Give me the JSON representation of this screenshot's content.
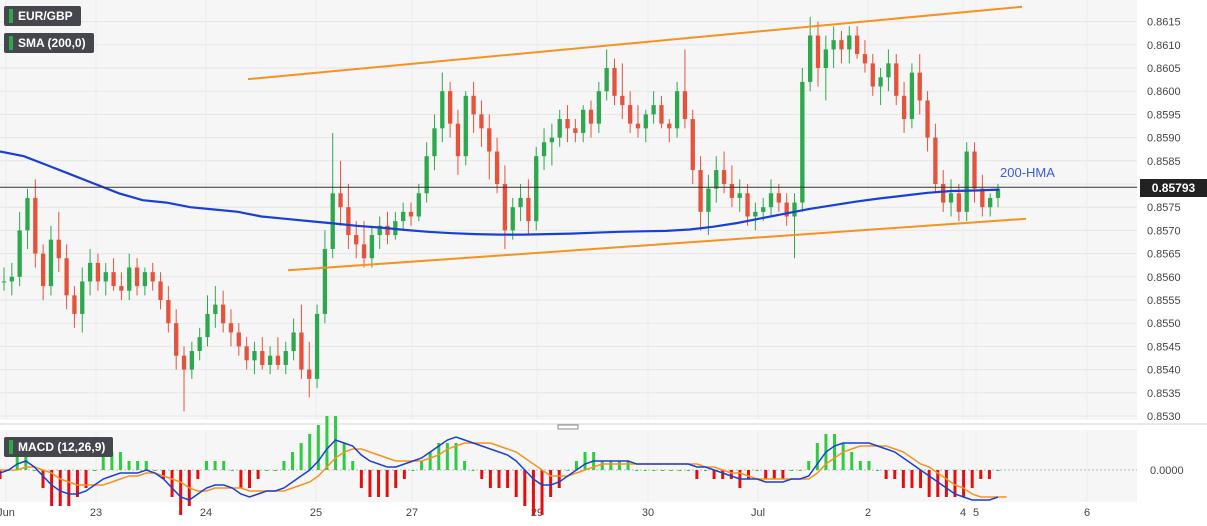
{
  "header": {
    "symbol": "EUR/GBP",
    "indicator": "SMA (200,0)",
    "macd_label": "MACD (12,26,9)",
    "current_price": "0.85793",
    "hma_annotation": "200-HMA"
  },
  "colors": {
    "bull": "#2ea84e",
    "bear": "#e5533d",
    "trendline": "#f5931e",
    "ma": "#1a3fd6",
    "macd_line": "#1a3fd6",
    "signal_line": "#f5931e",
    "hist_pos": "#2ecc40",
    "hist_neg": "#e01010",
    "grid": "#e6e6e6",
    "panel_bg": "#f6f6f7"
  },
  "chart_data": [
    {
      "type": "candlestick",
      "title": "EUR/GBP",
      "ylim": [
        0.8528,
        0.8619
      ],
      "y_ticks": [
        "0.8615",
        "0.8610",
        "0.8605",
        "0.8600",
        "0.8595",
        "0.8590",
        "0.8585",
        "0.8580",
        "0.8575",
        "0.8570",
        "0.8565",
        "0.8560",
        "0.8555",
        "0.8550",
        "0.8545",
        "0.8540",
        "0.8535",
        "0.8530"
      ],
      "x_ticks": [
        "Jun",
        "23",
        "24",
        "25",
        "27",
        "29",
        "30",
        "Jul",
        "2",
        "4",
        "5",
        "6"
      ],
      "ohlc": [
        [
          0.8559,
          0.8562,
          0.8557,
          0.8559
        ],
        [
          0.8559,
          0.8563,
          0.8556,
          0.856
        ],
        [
          0.856,
          0.8574,
          0.8558,
          0.857
        ],
        [
          0.857,
          0.8579,
          0.8566,
          0.8577
        ],
        [
          0.8577,
          0.8581,
          0.8562,
          0.8565
        ],
        [
          0.8565,
          0.8567,
          0.8555,
          0.8558
        ],
        [
          0.8558,
          0.8571,
          0.8556,
          0.8568
        ],
        [
          0.8568,
          0.8574,
          0.8561,
          0.8564
        ],
        [
          0.8564,
          0.8567,
          0.8553,
          0.8556
        ],
        [
          0.8556,
          0.8558,
          0.8549,
          0.8552
        ],
        [
          0.8552,
          0.8562,
          0.8548,
          0.8559
        ],
        [
          0.8559,
          0.8566,
          0.8556,
          0.8563
        ],
        [
          0.8563,
          0.8565,
          0.8557,
          0.8559
        ],
        [
          0.8559,
          0.8563,
          0.8556,
          0.8561
        ],
        [
          0.8561,
          0.8564,
          0.8557,
          0.8558
        ],
        [
          0.8558,
          0.8561,
          0.8555,
          0.8557
        ],
        [
          0.8557,
          0.8565,
          0.8555,
          0.8562
        ],
        [
          0.8562,
          0.8564,
          0.8556,
          0.8558
        ],
        [
          0.8558,
          0.8562,
          0.8556,
          0.8561
        ],
        [
          0.8561,
          0.8563,
          0.8557,
          0.8559
        ],
        [
          0.8559,
          0.8561,
          0.8553,
          0.8555
        ],
        [
          0.8555,
          0.8558,
          0.8548,
          0.855
        ],
        [
          0.855,
          0.8553,
          0.854,
          0.8543
        ],
        [
          0.8543,
          0.8545,
          0.8531,
          0.854
        ],
        [
          0.854,
          0.8546,
          0.8538,
          0.8544
        ],
        [
          0.8544,
          0.8549,
          0.8542,
          0.8547
        ],
        [
          0.8547,
          0.8556,
          0.8545,
          0.8552
        ],
        [
          0.8552,
          0.8558,
          0.8549,
          0.8554
        ],
        [
          0.8554,
          0.8557,
          0.8548,
          0.855
        ],
        [
          0.855,
          0.8553,
          0.8545,
          0.8548
        ],
        [
          0.8548,
          0.855,
          0.8543,
          0.8545
        ],
        [
          0.8545,
          0.8547,
          0.854,
          0.8542
        ],
        [
          0.8542,
          0.8546,
          0.8539,
          0.8544
        ],
        [
          0.8544,
          0.8547,
          0.854,
          0.8541
        ],
        [
          0.8541,
          0.8545,
          0.8539,
          0.8543
        ],
        [
          0.8543,
          0.8547,
          0.854,
          0.8541
        ],
        [
          0.8541,
          0.8546,
          0.8539,
          0.8544
        ],
        [
          0.8544,
          0.8551,
          0.8542,
          0.8548
        ],
        [
          0.8548,
          0.8554,
          0.8538,
          0.854
        ],
        [
          0.854,
          0.8546,
          0.8534,
          0.8538
        ],
        [
          0.8538,
          0.8554,
          0.8536,
          0.8552
        ],
        [
          0.8552,
          0.857,
          0.855,
          0.8566
        ],
        [
          0.8566,
          0.8591,
          0.8564,
          0.8578
        ],
        [
          0.8578,
          0.8585,
          0.8571,
          0.8575
        ],
        [
          0.8575,
          0.858,
          0.8566,
          0.8569
        ],
        [
          0.8569,
          0.8572,
          0.8564,
          0.8567
        ],
        [
          0.8567,
          0.8572,
          0.8562,
          0.8564
        ],
        [
          0.8564,
          0.8571,
          0.8562,
          0.8569
        ],
        [
          0.8569,
          0.8573,
          0.8566,
          0.8571
        ],
        [
          0.8571,
          0.8574,
          0.8567,
          0.8569
        ],
        [
          0.8569,
          0.8574,
          0.8568,
          0.8572
        ],
        [
          0.8572,
          0.8576,
          0.857,
          0.8574
        ],
        [
          0.8574,
          0.8576,
          0.8571,
          0.8573
        ],
        [
          0.8573,
          0.858,
          0.8572,
          0.8578
        ],
        [
          0.8578,
          0.8589,
          0.8576,
          0.8586
        ],
        [
          0.8586,
          0.8595,
          0.8583,
          0.8592
        ],
        [
          0.8592,
          0.8604,
          0.8589,
          0.86
        ],
        [
          0.86,
          0.8602,
          0.859,
          0.8593
        ],
        [
          0.8593,
          0.8596,
          0.8582,
          0.8586
        ],
        [
          0.8586,
          0.86,
          0.8584,
          0.8599
        ],
        [
          0.8599,
          0.8602,
          0.8591,
          0.8595
        ],
        [
          0.8595,
          0.8598,
          0.8588,
          0.8592
        ],
        [
          0.8592,
          0.8595,
          0.8581,
          0.8587
        ],
        [
          0.8587,
          0.859,
          0.8578,
          0.858
        ],
        [
          0.858,
          0.8584,
          0.8566,
          0.857
        ],
        [
          0.857,
          0.8577,
          0.8568,
          0.8575
        ],
        [
          0.8575,
          0.858,
          0.8572,
          0.8577
        ],
        [
          0.8577,
          0.8581,
          0.8569,
          0.8572
        ],
        [
          0.8572,
          0.8588,
          0.857,
          0.8586
        ],
        [
          0.8586,
          0.8592,
          0.8583,
          0.8589
        ],
        [
          0.8589,
          0.8593,
          0.8584,
          0.859
        ],
        [
          0.859,
          0.8596,
          0.8588,
          0.8594
        ],
        [
          0.8594,
          0.8597,
          0.8589,
          0.8592
        ],
        [
          0.8592,
          0.8594,
          0.8589,
          0.8591
        ],
        [
          0.8591,
          0.8597,
          0.8589,
          0.8596
        ],
        [
          0.8596,
          0.8598,
          0.859,
          0.8593
        ],
        [
          0.8593,
          0.8602,
          0.8591,
          0.86
        ],
        [
          0.86,
          0.8609,
          0.8598,
          0.8605
        ],
        [
          0.8605,
          0.8607,
          0.8597,
          0.8599
        ],
        [
          0.8599,
          0.8606,
          0.8594,
          0.8597
        ],
        [
          0.8597,
          0.86,
          0.8591,
          0.8593
        ],
        [
          0.8593,
          0.8597,
          0.859,
          0.8592
        ],
        [
          0.8592,
          0.8596,
          0.8589,
          0.8595
        ],
        [
          0.8595,
          0.86,
          0.8593,
          0.8597
        ],
        [
          0.8597,
          0.8599,
          0.8592,
          0.8593
        ],
        [
          0.8593,
          0.8594,
          0.8589,
          0.8592
        ],
        [
          0.8592,
          0.8602,
          0.859,
          0.86
        ],
        [
          0.86,
          0.8609,
          0.8592,
          0.8594
        ],
        [
          0.8594,
          0.8596,
          0.858,
          0.8583
        ],
        [
          0.8583,
          0.8586,
          0.857,
          0.8574
        ],
        [
          0.8574,
          0.8582,
          0.8569,
          0.8579
        ],
        [
          0.8579,
          0.8586,
          0.8576,
          0.8583
        ],
        [
          0.8583,
          0.8587,
          0.8578,
          0.858
        ],
        [
          0.858,
          0.8584,
          0.8575,
          0.8577
        ],
        [
          0.8577,
          0.8581,
          0.8574,
          0.8578
        ],
        [
          0.8578,
          0.858,
          0.8571,
          0.8573
        ],
        [
          0.8573,
          0.8576,
          0.857,
          0.8574
        ],
        [
          0.8574,
          0.8577,
          0.8572,
          0.8575
        ],
        [
          0.8575,
          0.8581,
          0.8573,
          0.8578
        ],
        [
          0.8578,
          0.858,
          0.8574,
          0.8576
        ],
        [
          0.8576,
          0.8578,
          0.8571,
          0.8573
        ],
        [
          0.8573,
          0.8578,
          0.8564,
          0.8576
        ],
        [
          0.8576,
          0.8605,
          0.8574,
          0.8602
        ],
        [
          0.8602,
          0.8616,
          0.86,
          0.8612
        ],
        [
          0.8612,
          0.8615,
          0.8601,
          0.8605
        ],
        [
          0.8605,
          0.8612,
          0.8598,
          0.8609
        ],
        [
          0.8609,
          0.8614,
          0.8605,
          0.8611
        ],
        [
          0.8611,
          0.8613,
          0.8606,
          0.8609
        ],
        [
          0.8609,
          0.8614,
          0.8606,
          0.8612
        ],
        [
          0.8612,
          0.8614,
          0.8607,
          0.8608
        ],
        [
          0.8608,
          0.8611,
          0.8604,
          0.8606
        ],
        [
          0.8606,
          0.8608,
          0.8599,
          0.8601
        ],
        [
          0.8601,
          0.8605,
          0.8597,
          0.8603
        ],
        [
          0.8603,
          0.8609,
          0.86,
          0.8606
        ],
        [
          0.8606,
          0.8608,
          0.8597,
          0.8599
        ],
        [
          0.8599,
          0.8602,
          0.8591,
          0.8594
        ],
        [
          0.8594,
          0.8606,
          0.8592,
          0.8604
        ],
        [
          0.8604,
          0.8608,
          0.8595,
          0.8598
        ],
        [
          0.8598,
          0.86,
          0.8587,
          0.859
        ],
        [
          0.859,
          0.8593,
          0.8578,
          0.858
        ],
        [
          0.858,
          0.8583,
          0.8574,
          0.8576
        ],
        [
          0.8576,
          0.8581,
          0.8573,
          0.8578
        ],
        [
          0.8578,
          0.858,
          0.8572,
          0.8574
        ],
        [
          0.8574,
          0.8589,
          0.8572,
          0.8587
        ],
        [
          0.8587,
          0.8589,
          0.8576,
          0.8579
        ],
        [
          0.8579,
          0.8582,
          0.8573,
          0.8575
        ],
        [
          0.8575,
          0.8578,
          0.8573,
          0.8577
        ],
        [
          0.8577,
          0.858,
          0.8575,
          0.8579
        ]
      ],
      "trendlines": [
        {
          "name": "upper",
          "x": [
            0.0,
            1.0
          ],
          "y": [
            0.86026,
            0.86182
          ]
        },
        {
          "name": "lower",
          "x": [
            0.0,
            1.0
          ],
          "y": [
            0.85614,
            0.85725
          ]
        }
      ],
      "moving_average": {
        "name": "200-HMA",
        "values": [
          0.8587,
          0.8586,
          0.8584,
          0.8582,
          0.858,
          0.8578,
          0.85765,
          0.8576,
          0.8575,
          0.85745,
          0.8574,
          0.8573,
          0.85725,
          0.8572,
          0.85715,
          0.8571,
          0.85706,
          0.85701,
          0.85697,
          0.85694,
          0.85692,
          0.85691,
          0.85691,
          0.85692,
          0.85693,
          0.85695,
          0.85697,
          0.85698,
          0.85699,
          0.85702,
          0.85708,
          0.85716,
          0.85726,
          0.85736,
          0.85746,
          0.85754,
          0.85762,
          0.85769,
          0.85775,
          0.85781,
          0.85785,
          0.85786,
          0.85788
        ]
      }
    },
    {
      "type": "macd",
      "title": "MACD (12,26,9)",
      "y_ticks": [
        "0.0000"
      ],
      "ylim": [
        -0.0012,
        0.0013
      ],
      "macd": [
        -0.0001,
        0.0,
        0.0002,
        0.0003,
        0.0001,
        -0.0002,
        -0.0005,
        -0.0007,
        -0.0008,
        -0.0008,
        -0.0007,
        -0.0005,
        -0.0003,
        -0.0002,
        -0.0001,
        -0.0001,
        -0.0001,
        0.0,
        -0.0001,
        -0.0003,
        -0.0006,
        -0.0009,
        -0.001,
        -0.0008,
        -0.0006,
        -0.0005,
        -0.0005,
        -0.0006,
        -0.0008,
        -0.0009,
        -0.0008,
        -0.0007,
        -0.0007,
        -0.0006,
        -0.0004,
        -0.0002,
        0.0,
        0.0003,
        0.0007,
        0.001,
        0.0009,
        0.0008,
        0.0005,
        0.0003,
        0.0002,
        0.0001,
        0.0001,
        0.0002,
        0.0003,
        0.0004,
        0.0006,
        0.0008,
        0.001,
        0.0011,
        0.001,
        0.0009,
        0.0008,
        0.0007,
        0.0006,
        0.0005,
        0.0003,
        0.0,
        -0.0003,
        -0.0005,
        -0.0005,
        -0.0004,
        -0.0002,
        0.0,
        0.0002,
        0.0003,
        0.0003,
        0.0003,
        0.0003,
        0.0003,
        0.0002,
        0.0002,
        0.0002,
        0.0002,
        0.0002,
        0.0002,
        0.0002,
        0.0001,
        0.0001,
        0.0,
        -0.0001,
        -0.0002,
        -0.0003,
        -0.0003,
        -0.0003,
        -0.0004,
        -0.0004,
        -0.0004,
        -0.0003,
        -0.0003,
        -0.0002,
        0.0002,
        0.0006,
        0.0008,
        0.0009,
        0.0009,
        0.0009,
        0.0009,
        0.0008,
        0.0007,
        0.0006,
        0.0004,
        0.0002,
        0.0,
        -0.0002,
        -0.0004,
        -0.0006,
        -0.0008,
        -0.0009,
        -0.001,
        -0.001,
        -0.001,
        -0.0009
      ],
      "signal": [
        0.0,
        0.0,
        0.0,
        0.0001,
        0.0001,
        0.0,
        -0.0001,
        -0.0003,
        -0.0004,
        -0.0005,
        -0.0005,
        -0.0005,
        -0.0005,
        -0.0004,
        -0.0003,
        -0.0002,
        -0.0002,
        -0.0001,
        -0.0001,
        -0.0002,
        -0.0003,
        -0.0004,
        -0.0006,
        -0.0007,
        -0.0007,
        -0.0006,
        -0.0006,
        -0.0006,
        -0.0006,
        -0.0007,
        -0.0007,
        -0.0007,
        -0.0007,
        -0.0007,
        -0.0006,
        -0.0005,
        -0.0004,
        -0.0002,
        0.0001,
        0.0004,
        0.0006,
        0.0007,
        0.0007,
        0.0006,
        0.0005,
        0.0004,
        0.0003,
        0.0003,
        0.0003,
        0.0003,
        0.0004,
        0.0005,
        0.0007,
        0.0008,
        0.0009,
        0.0009,
        0.0009,
        0.0009,
        0.0008,
        0.0007,
        0.0006,
        0.0004,
        0.0002,
        0.0,
        -0.0002,
        -0.0002,
        -0.0002,
        -0.0001,
        0.0,
        0.0001,
        0.0002,
        0.0002,
        0.0002,
        0.0002,
        0.0002,
        0.0002,
        0.0002,
        0.0002,
        0.0002,
        0.0002,
        0.0002,
        0.0002,
        0.0001,
        0.0001,
        0.0,
        -0.0001,
        -0.0001,
        -0.0002,
        -0.0003,
        -0.0003,
        -0.0003,
        -0.0003,
        -0.0003,
        -0.0003,
        -0.0003,
        -0.0001,
        0.0002,
        0.0004,
        0.0006,
        0.0007,
        0.0008,
        0.0008,
        0.0008,
        0.0008,
        0.0007,
        0.0006,
        0.0004,
        0.0002,
        0.0001,
        -0.0001,
        -0.0003,
        -0.0005,
        -0.0006,
        -0.0008,
        -0.0009,
        -0.0009,
        -0.0009,
        -0.0009
      ]
    }
  ]
}
